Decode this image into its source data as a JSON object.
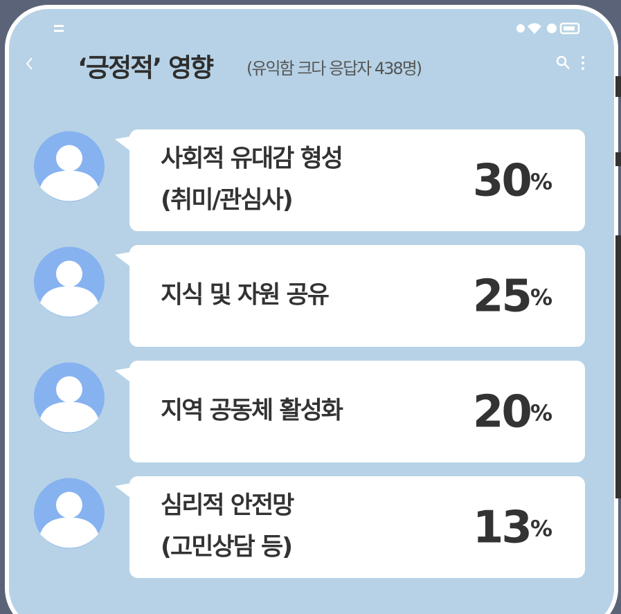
{
  "header": {
    "title": "‘긍정적’ 영향",
    "subtitle": "(유익함 크다 응답자 438명)"
  },
  "items": [
    {
      "label": [
        "사회적 유대감 형성",
        "(취미/관심사)"
      ],
      "value": 30,
      "unit": "%"
    },
    {
      "label": [
        "지식 및 자원 공유"
      ],
      "value": 25,
      "unit": "%"
    },
    {
      "label": [
        "지역 공동체 활성화"
      ],
      "value": 20,
      "unit": "%"
    },
    {
      "label": [
        "심리적 안전망",
        "(고민상담 등)"
      ],
      "value": 13,
      "unit": "%"
    }
  ]
}
